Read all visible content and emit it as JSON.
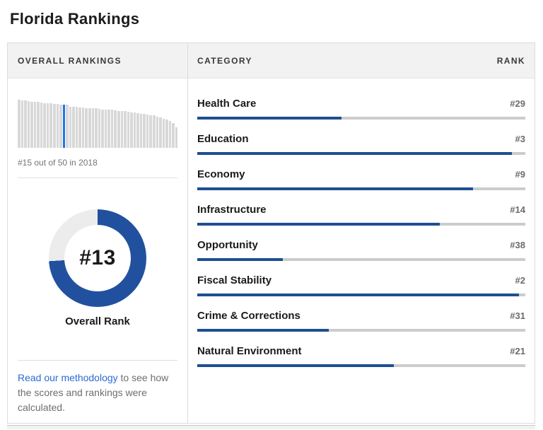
{
  "page": {
    "title": "Florida Rankings"
  },
  "panel": {
    "overall": {
      "header": "OVERALL RANKINGS",
      "caption": "#15 out of 50 in 2018",
      "overall_rank_display": "#13",
      "overall_rank_label": "Overall Rank",
      "methodology_link": "Read our methodology",
      "methodology_rest": " to see how the scores and rankings were calculated."
    },
    "categories": {
      "header_category": "CATEGORY",
      "header_rank": "RANK",
      "total_states": 50,
      "rows": [
        {
          "label": "Health Care",
          "rank": 29,
          "rank_display": "#29"
        },
        {
          "label": "Education",
          "rank": 3,
          "rank_display": "#3"
        },
        {
          "label": "Economy",
          "rank": 9,
          "rank_display": "#9"
        },
        {
          "label": "Infrastructure",
          "rank": 14,
          "rank_display": "#14"
        },
        {
          "label": "Opportunity",
          "rank": 38,
          "rank_display": "#38"
        },
        {
          "label": "Fiscal Stability",
          "rank": 2,
          "rank_display": "#2"
        },
        {
          "label": "Crime & Corrections",
          "rank": 31,
          "rank_display": "#31"
        },
        {
          "label": "Natural Environment",
          "rank": 21,
          "rank_display": "#21"
        }
      ]
    }
  },
  "chart_data": [
    {
      "type": "bar",
      "title": "Overall rankings distribution across 50 states",
      "x_range": [
        1,
        50
      ],
      "values": [
        100,
        99,
        98,
        97,
        96,
        95,
        95,
        94,
        93,
        93,
        92,
        91,
        91,
        90,
        90,
        89,
        86,
        85,
        85,
        84,
        84,
        83,
        83,
        82,
        82,
        81,
        80,
        80,
        79,
        79,
        78,
        77,
        76,
        76,
        75,
        74,
        73,
        72,
        71,
        70,
        69,
        68,
        67,
        65,
        63,
        61,
        59,
        56,
        51,
        42
      ],
      "highlight_x": 15,
      "highlight_note": "#15 out of 50 in 2018",
      "axes": "hidden",
      "grid": false,
      "legend": "none"
    },
    {
      "type": "pie",
      "subtype": "donut",
      "title": "Overall Rank",
      "center_label": "#13",
      "rank": 13,
      "total": 50,
      "slices": [
        {
          "name": "rank-position",
          "value": 74,
          "color": "#21519e"
        },
        {
          "name": "remainder",
          "value": 26,
          "color": "#ececec"
        }
      ],
      "start": "12 o'clock, clockwise"
    },
    {
      "type": "bar",
      "title": "Category rankings (bar length = (51 - rank) / 50)",
      "categories": [
        "Health Care",
        "Education",
        "Economy",
        "Infrastructure",
        "Opportunity",
        "Fiscal Stability",
        "Crime & Corrections",
        "Natural Environment"
      ],
      "values": [
        29,
        3,
        9,
        14,
        38,
        2,
        31,
        21
      ],
      "bar_length_pct": [
        44,
        96,
        84,
        74,
        26,
        98,
        40,
        60
      ],
      "total": 50,
      "value_format": "#rank out of 50"
    }
  ],
  "colors": {
    "category_bar_navy": "#1d4f91",
    "donut_navy": "#21519e",
    "donut_gray": "#ececec",
    "mini_bar_gray": "#d8d8d8",
    "mini_bar_highlight": "#2373e8",
    "bar_track_gray": "#cccccc",
    "link_blue": "#2a6bd4",
    "header_bg": "#f2f2f2"
  }
}
